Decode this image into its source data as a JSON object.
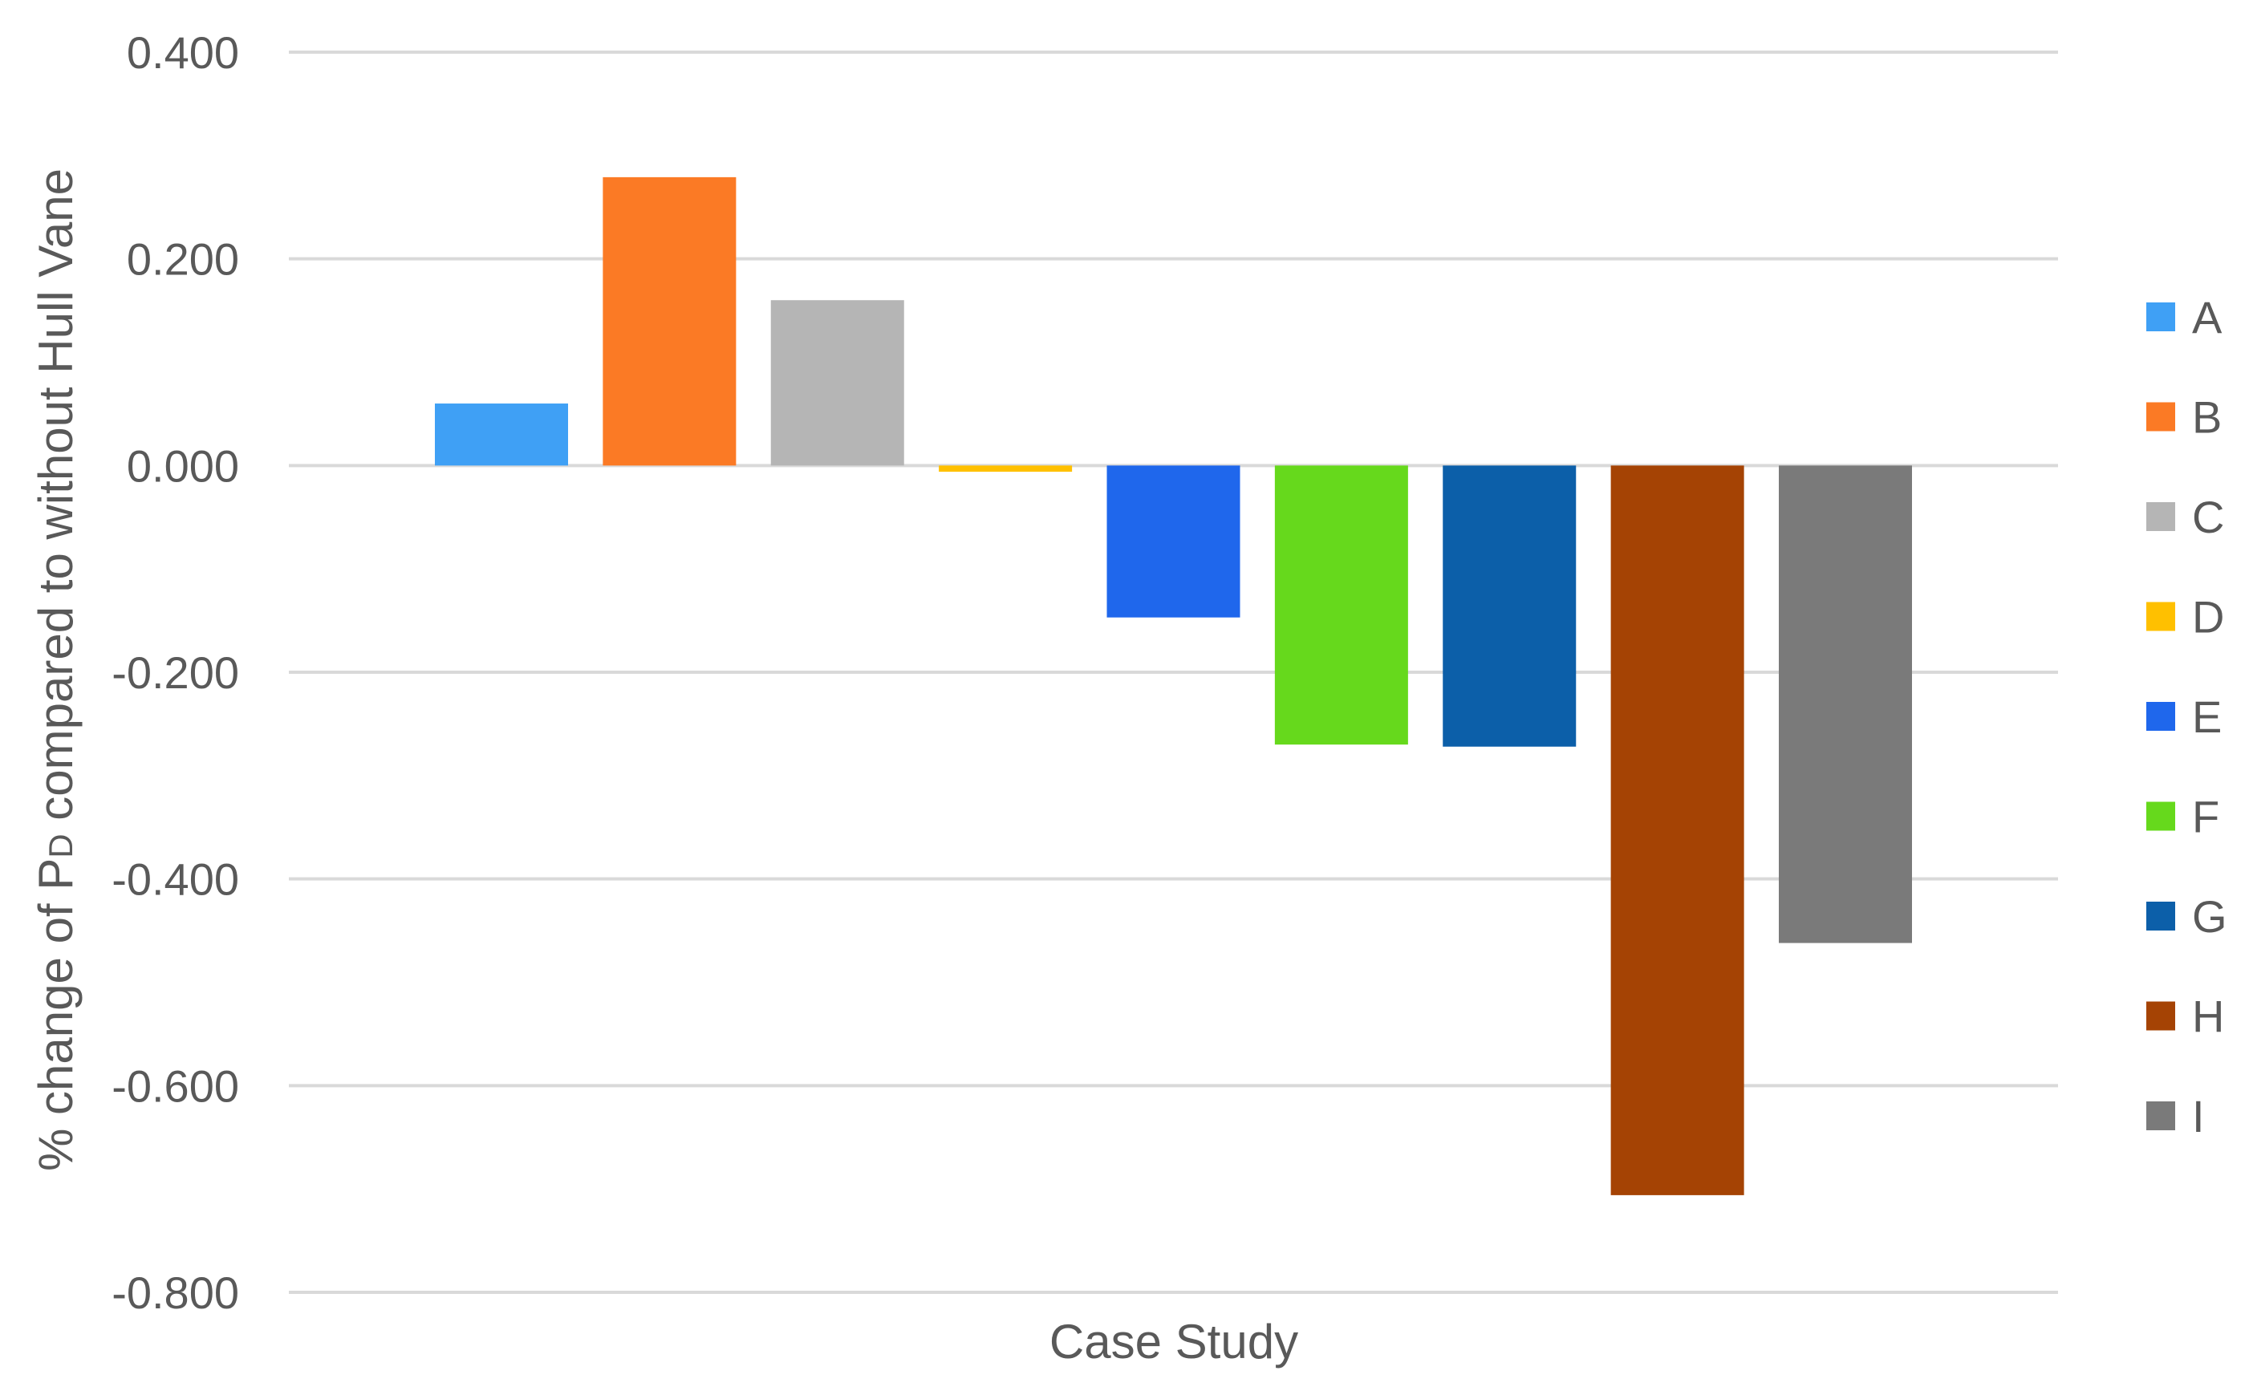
{
  "chart_data": {
    "type": "bar",
    "title": "",
    "xlabel": "Case Study",
    "ylabel_parts": {
      "before": "% change of P",
      "subscript": "D",
      "after": " compared to without Hull Vane"
    },
    "ylim": [
      -0.8,
      0.4
    ],
    "yticks": [
      0.4,
      0.2,
      0.0,
      -0.2,
      -0.4,
      -0.6,
      -0.8
    ],
    "ytick_labels": [
      "0.400",
      "0.200",
      "0.000",
      "-0.200",
      "-0.400",
      "-0.600",
      "-0.800"
    ],
    "grid": true,
    "legend_position": "right",
    "series": [
      {
        "name": "A",
        "value": 0.06,
        "color": "#3fa0f5"
      },
      {
        "name": "B",
        "value": 0.279,
        "color": "#fb7a25"
      },
      {
        "name": "C",
        "value": 0.16,
        "color": "#b5b5b5"
      },
      {
        "name": "D",
        "value": -0.006,
        "color": "#ffc000"
      },
      {
        "name": "E",
        "value": -0.147,
        "color": "#1f67ec"
      },
      {
        "name": "F",
        "value": -0.27,
        "color": "#66d91c"
      },
      {
        "name": "G",
        "value": -0.272,
        "color": "#0c5fa9"
      },
      {
        "name": "H",
        "value": -0.706,
        "color": "#a54304"
      },
      {
        "name": "I",
        "value": -0.462,
        "color": "#7a7a7a"
      }
    ]
  }
}
